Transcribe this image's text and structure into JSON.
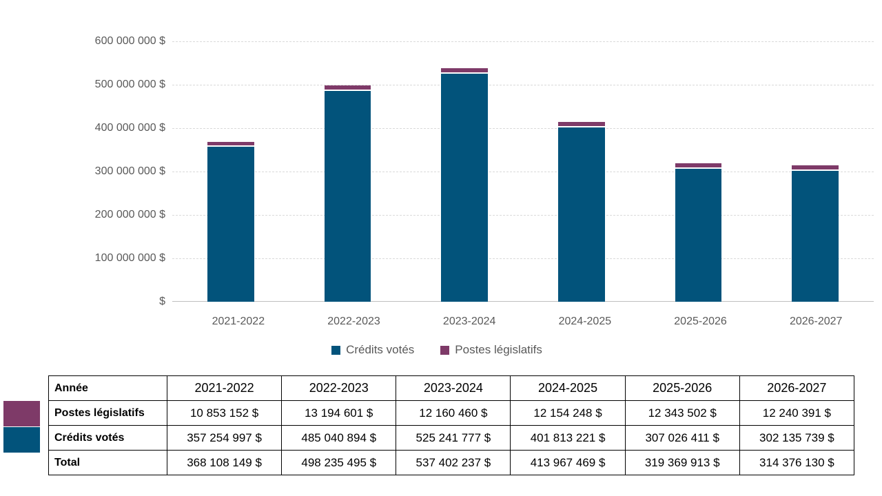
{
  "chart_data": {
    "type": "bar",
    "stacked": true,
    "categories": [
      "2021-2022",
      "2022-2023",
      "2023-2024",
      "2024-2025",
      "2025-2026",
      "2026-2027"
    ],
    "series": [
      {
        "name": "Crédits votés",
        "color": "#02537B",
        "values": [
          357254997,
          485040894,
          525241777,
          401813221,
          307026411,
          302135739
        ]
      },
      {
        "name": "Postes législatifs",
        "color": "#7E3A68",
        "values": [
          10853152,
          13194601,
          12160460,
          12154248,
          12343502,
          12240391
        ]
      }
    ],
    "totals": [
      368108149,
      498235495,
      537402237,
      413967469,
      319369913,
      314376130
    ],
    "title": "",
    "xlabel": "",
    "ylabel": "",
    "ylim": [
      0,
      600000000
    ],
    "ytick_labels": [
      "600 000 000 $",
      "500 000 000 $",
      "400 000 000 $",
      "300 000 000 $",
      "200 000 000 $",
      "100 000 000 $",
      "$"
    ],
    "grid": "horizontal-dashed",
    "legend_position": "bottom",
    "legend": [
      "Crédits votés",
      "Postes législatifs"
    ]
  },
  "colors": {
    "credits_votes": "#02537B",
    "postes_legislatifs": "#7E3A68",
    "axis_text": "#595959",
    "gridline": "#D9D9D9",
    "axis_line": "#BFBFBF",
    "table_border": "#000000",
    "table_text": "#000000",
    "background": "#FFFFFF"
  },
  "table": {
    "corner_label": "Année",
    "years": [
      "2021-2022",
      "2022-2023",
      "2023-2024",
      "2024-2025",
      "2025-2026",
      "2026-2027"
    ],
    "rows": [
      {
        "label": "Postes législatifs",
        "swatch": "#7E3A68",
        "values": [
          "10 853 152 $",
          "13 194 601 $",
          "12 160 460 $",
          "12 154 248 $",
          "12 343 502 $",
          "12 240 391 $"
        ]
      },
      {
        "label": "Crédits votés",
        "swatch": "#02537B",
        "values": [
          "357 254 997 $",
          "485 040 894 $",
          "525 241 777 $",
          "401 813 221 $",
          "307 026 411 $",
          "302 135 739 $"
        ]
      },
      {
        "label": "Total",
        "swatch": null,
        "values": [
          "368 108 149 $",
          "498 235 495 $",
          "537 402 237 $",
          "413 967 469 $",
          "319 369 913 $",
          "314 376 130 $"
        ]
      }
    ]
  }
}
